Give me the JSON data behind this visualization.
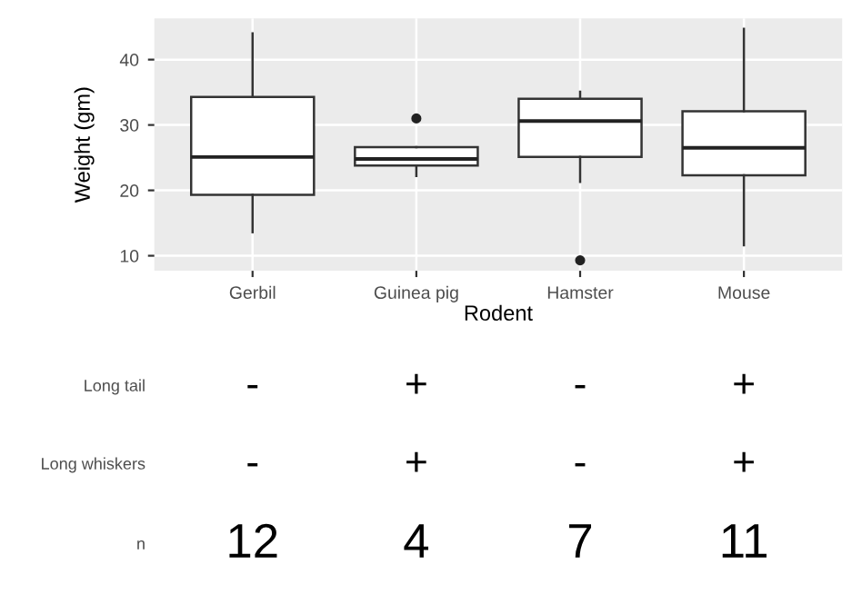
{
  "chart_data": {
    "type": "box",
    "xlabel": "Rodent",
    "ylabel": "Weight (gm)",
    "categories": [
      "Gerbil",
      "Guinea pig",
      "Hamster",
      "Mouse"
    ],
    "boxes": [
      {
        "low": 13.6,
        "q1": 19.3,
        "median": 25.1,
        "q3": 34.3,
        "high": 44.0
      },
      {
        "low": 22.2,
        "q1": 23.8,
        "median": 24.8,
        "q3": 26.6,
        "high": 26.6,
        "outliers": [
          31.0
        ]
      },
      {
        "low": 21.3,
        "q1": 25.1,
        "median": 30.6,
        "q3": 34.0,
        "high": 35.1,
        "outliers": [
          9.3
        ]
      },
      {
        "low": 11.6,
        "q1": 22.3,
        "median": 26.5,
        "q3": 32.1,
        "high": 44.7
      }
    ],
    "ylim": [
      7.7,
      46.3
    ],
    "yticks": [
      10,
      20,
      30,
      40
    ],
    "grid": true,
    "annotations": [
      "Long tail",
      "-",
      "+",
      "-",
      "+",
      "Long whiskers",
      "-",
      "+",
      "-",
      "+",
      "n",
      "12",
      "4",
      "7",
      "11"
    ]
  }
}
